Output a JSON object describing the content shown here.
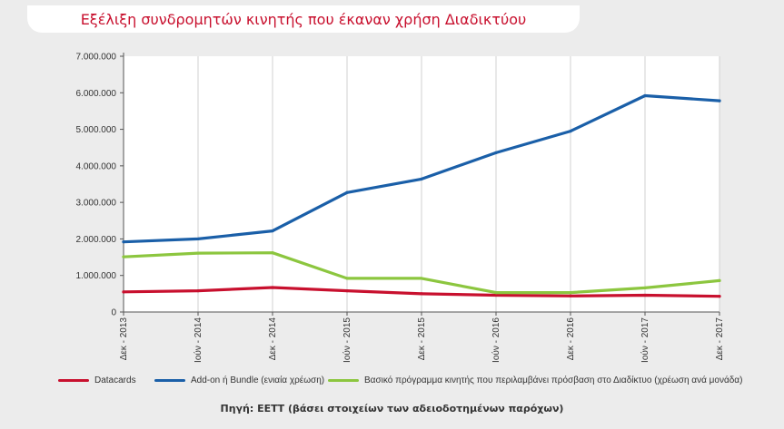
{
  "title": "Εξέλιξη συνδρομητών κινητής που έκαναν χρήση Διαδικτύου",
  "source": "Πηγή: ΕΕΤΤ (βάσει στοιχείων των αδειοδοτημένων παρόχων)",
  "chart_data": {
    "type": "line",
    "categories": [
      "Δεκ - 2013",
      "Ιούν - 2014",
      "Δεκ - 2014",
      "Ιούν - 2015",
      "Δεκ - 2015",
      "Ιούν - 2016",
      "Δεκ - 2016",
      "Ιούν - 2017",
      "Δεκ - 2017"
    ],
    "ylim": [
      0,
      7000000
    ],
    "yticks": [
      "0",
      "1.000.000",
      "2.000.000",
      "3.000.000",
      "4.000.000",
      "5.000.000",
      "6.000.000",
      "7.000.000"
    ],
    "ytick_values": [
      0,
      1000000,
      2000000,
      3000000,
      4000000,
      5000000,
      6000000,
      7000000
    ],
    "grid": "vertical",
    "legend_position": "bottom",
    "series": [
      {
        "name": "Datacards",
        "color": "#c8102e",
        "values": [
          550000,
          580000,
          670000,
          580000,
          500000,
          460000,
          440000,
          460000,
          430000
        ]
      },
      {
        "name": "Add-on ή Bundle (ενιαία χρέωση)",
        "color": "#1a5fa8",
        "values": [
          1920000,
          2000000,
          2220000,
          3270000,
          3640000,
          4360000,
          4950000,
          5920000,
          5780000
        ]
      },
      {
        "name": "Βασικό πρόγραμμα κινητής που περιλαμβάνει πρόσβαση στο Διαδίκτυο (χρέωση ανά μονάδα)",
        "color": "#8cc63f",
        "values": [
          1510000,
          1610000,
          1620000,
          920000,
          920000,
          530000,
          530000,
          660000,
          860000
        ]
      }
    ]
  }
}
